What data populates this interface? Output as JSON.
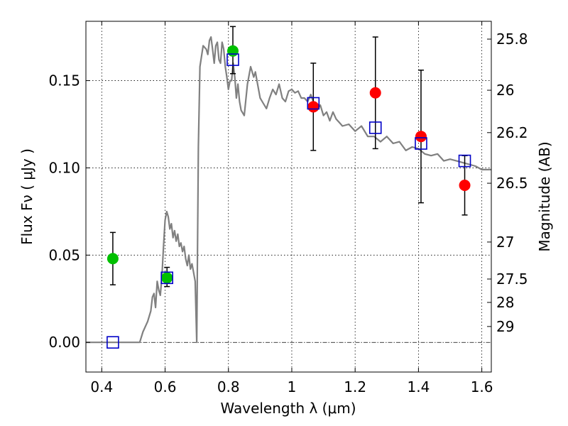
{
  "chart_data": {
    "type": "scatter",
    "xlabel": "Wavelength  λ (μm)",
    "ylabel": "Flux  Fν  ( μJy )",
    "y2label": "Magnitude (AB)",
    "xlim": [
      0.35,
      1.63
    ],
    "ylim": [
      -0.017,
      0.184
    ],
    "grid": true,
    "xticks": [
      0.4,
      0.6,
      0.8,
      1.0,
      1.2,
      1.4,
      1.6
    ],
    "xtick_labels": [
      "0.4",
      "0.6",
      "0.8",
      "1",
      "1.2",
      "1.4",
      "1.6"
    ],
    "yticks": [
      0.0,
      0.05,
      0.1,
      0.15
    ],
    "ytick_labels": [
      "0.00",
      "0.05",
      "0.10",
      "0.15"
    ],
    "y2ticks": [
      {
        "label": "25.8",
        "flux": 0.1738
      },
      {
        "label": "26",
        "flux": 0.1445
      },
      {
        "label": "26.2",
        "flux": 0.1202
      },
      {
        "label": "26.5",
        "flux": 0.0912
      },
      {
        "label": "27",
        "flux": 0.0575
      },
      {
        "label": "27.5",
        "flux": 0.0363
      },
      {
        "label": "28",
        "flux": 0.0229
      },
      {
        "label": "29",
        "flux": 0.0091
      }
    ],
    "colors": {
      "model": "#808080",
      "green": "#00c000",
      "red": "#ff0000",
      "square": "#0000c8",
      "errorbar": "#000000"
    },
    "series": [
      {
        "kind": "line",
        "x": [
          0.35,
          0.5,
          0.52,
          0.53,
          0.545,
          0.555,
          0.56,
          0.565,
          0.57,
          0.575,
          0.58,
          0.585,
          0.59,
          0.595,
          0.6,
          0.605,
          0.61,
          0.615,
          0.62,
          0.625,
          0.63,
          0.635,
          0.64,
          0.645,
          0.65,
          0.655,
          0.66,
          0.665,
          0.67,
          0.675,
          0.68,
          0.685,
          0.69,
          0.695,
          0.7,
          0.705,
          0.71,
          0.72,
          0.73,
          0.735,
          0.74,
          0.745,
          0.75,
          0.755,
          0.76,
          0.765,
          0.77,
          0.775,
          0.78,
          0.785,
          0.79,
          0.795,
          0.8,
          0.805,
          0.81,
          0.815,
          0.82,
          0.825,
          0.83,
          0.835,
          0.84,
          0.85,
          0.86,
          0.87,
          0.88,
          0.885,
          0.89,
          0.9,
          0.91,
          0.92,
          0.93,
          0.94,
          0.95,
          0.96,
          0.97,
          0.98,
          0.99,
          1.0,
          1.01,
          1.02,
          1.03,
          1.04,
          1.05,
          1.06,
          1.07,
          1.08,
          1.09,
          1.1,
          1.11,
          1.12,
          1.13,
          1.14,
          1.15,
          1.16,
          1.18,
          1.2,
          1.22,
          1.24,
          1.26,
          1.28,
          1.3,
          1.32,
          1.34,
          1.36,
          1.38,
          1.4,
          1.42,
          1.44,
          1.46,
          1.48,
          1.5,
          1.52,
          1.54,
          1.56,
          1.58,
          1.6,
          1.63
        ],
        "y": [
          0.0,
          0.0,
          0.0,
          0.006,
          0.012,
          0.018,
          0.026,
          0.028,
          0.02,
          0.035,
          0.03,
          0.027,
          0.038,
          0.055,
          0.07,
          0.075,
          0.072,
          0.065,
          0.068,
          0.06,
          0.064,
          0.058,
          0.062,
          0.055,
          0.057,
          0.052,
          0.055,
          0.048,
          0.044,
          0.05,
          0.042,
          0.045,
          0.04,
          0.035,
          0.0,
          0.112,
          0.158,
          0.17,
          0.168,
          0.165,
          0.173,
          0.175,
          0.168,
          0.16,
          0.17,
          0.172,
          0.162,
          0.16,
          0.172,
          0.168,
          0.158,
          0.152,
          0.145,
          0.15,
          0.15,
          0.16,
          0.152,
          0.14,
          0.148,
          0.138,
          0.133,
          0.13,
          0.148,
          0.158,
          0.152,
          0.155,
          0.15,
          0.14,
          0.137,
          0.134,
          0.14,
          0.145,
          0.142,
          0.148,
          0.14,
          0.138,
          0.144,
          0.145,
          0.143,
          0.144,
          0.14,
          0.14,
          0.138,
          0.142,
          0.137,
          0.133,
          0.136,
          0.13,
          0.132,
          0.127,
          0.132,
          0.128,
          0.126,
          0.124,
          0.125,
          0.121,
          0.124,
          0.118,
          0.118,
          0.115,
          0.118,
          0.114,
          0.115,
          0.11,
          0.112,
          0.111,
          0.108,
          0.107,
          0.108,
          0.104,
          0.105,
          0.104,
          0.103,
          0.102,
          0.101,
          0.099,
          0.099
        ]
      },
      {
        "kind": "points",
        "marker": "green-circle",
        "points": [
          {
            "x": 0.435,
            "y": 0.048,
            "err": [
              0.033,
              0.063
            ]
          },
          {
            "x": 0.606,
            "y": 0.037,
            "err": [
              0.032,
              0.043
            ]
          },
          {
            "x": 0.814,
            "y": 0.167,
            "err": [
              0.154,
              0.181
            ]
          }
        ]
      },
      {
        "kind": "points",
        "marker": "red-circle",
        "points": [
          {
            "x": 1.068,
            "y": 0.135,
            "err": [
              0.11,
              0.16
            ]
          },
          {
            "x": 1.264,
            "y": 0.143,
            "err": [
              0.111,
              0.175
            ]
          },
          {
            "x": 1.408,
            "y": 0.118,
            "err": [
              0.08,
              0.156
            ]
          },
          {
            "x": 1.546,
            "y": 0.09,
            "err": [
              0.073,
              0.107
            ]
          }
        ]
      },
      {
        "kind": "points",
        "marker": "blue-square",
        "points": [
          {
            "x": 0.435,
            "y": 0.0
          },
          {
            "x": 0.606,
            "y": 0.037
          },
          {
            "x": 0.814,
            "y": 0.162
          },
          {
            "x": 1.068,
            "y": 0.137
          },
          {
            "x": 1.264,
            "y": 0.123
          },
          {
            "x": 1.408,
            "y": 0.114
          },
          {
            "x": 1.546,
            "y": 0.104
          }
        ]
      }
    ]
  }
}
